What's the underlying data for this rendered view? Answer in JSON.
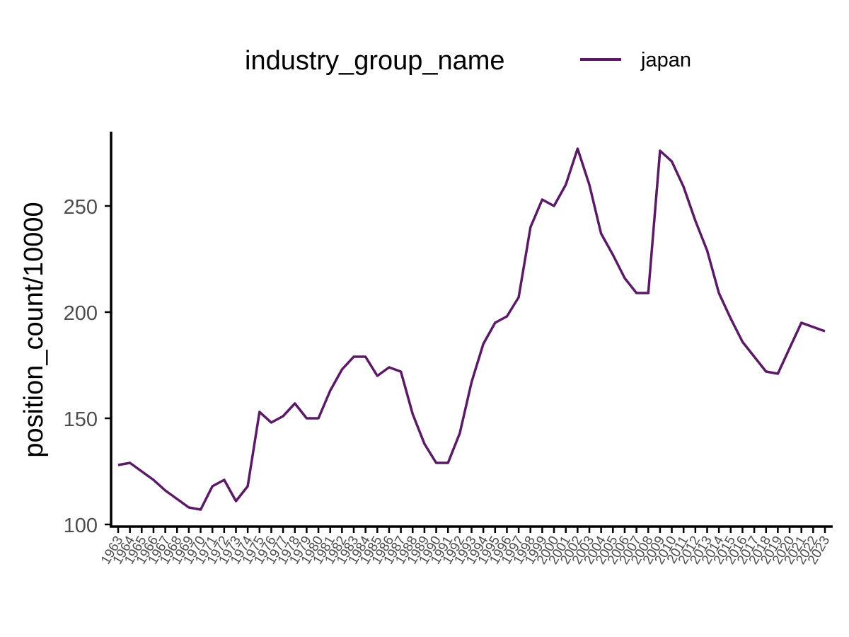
{
  "chart_data": {
    "type": "line",
    "title": "",
    "xlabel": "",
    "ylabel": "position_count/10000",
    "legend": {
      "title": "industry_group_name",
      "position": "top",
      "entries": [
        "japan"
      ]
    },
    "grid": false,
    "ylim": [
      99,
      285
    ],
    "yticks": [
      100,
      150,
      200,
      250
    ],
    "x": [
      "1963",
      "1964",
      "1965",
      "1966",
      "1967",
      "1968",
      "1969",
      "1970",
      "1971",
      "1972",
      "1973",
      "1974",
      "1975",
      "1976",
      "1977",
      "1978",
      "1979",
      "1980",
      "1981",
      "1982",
      "1983",
      "1984",
      "1985",
      "1986",
      "1987",
      "1988",
      "1989",
      "1990",
      "1991",
      "1992",
      "1993",
      "1994",
      "1995",
      "1996",
      "1997",
      "1998",
      "1999",
      "2000",
      "2001",
      "2002",
      "2003",
      "2004",
      "2005",
      "2006",
      "2007",
      "2008",
      "2009",
      "2010",
      "2011",
      "2012",
      "2013",
      "2014",
      "2015",
      "2016",
      "2017",
      "2018",
      "2019",
      "2020",
      "2021",
      "2022",
      "2023"
    ],
    "series": [
      {
        "name": "japan",
        "color": "#5a1a66",
        "values": [
          128,
          129,
          125,
          121,
          116,
          112,
          108,
          107,
          118,
          121,
          111,
          118,
          153,
          148,
          151,
          157,
          150,
          150,
          163,
          173,
          179,
          179,
          170,
          174,
          172,
          152,
          138,
          129,
          129,
          143,
          167,
          185,
          195,
          198,
          207,
          240,
          253,
          250,
          260,
          277,
          260,
          237,
          227,
          216,
          209,
          209,
          276,
          271,
          259,
          243,
          229,
          209,
          197,
          186,
          179,
          172,
          171,
          183,
          195,
          193,
          191
        ]
      }
    ]
  }
}
